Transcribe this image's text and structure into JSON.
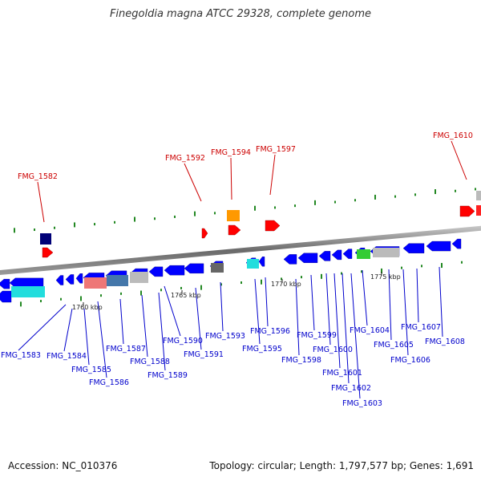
{
  "title": "Finegoldia magna ATCC 29328, complete genome",
  "colors": {
    "forward_gene": "#ff0000",
    "reverse_gene": "#0000ff",
    "forward_label": "#cc0000",
    "reverse_label": "#0000cc",
    "backbone": "#888888",
    "gc_tick": "#228822"
  },
  "tick_labels": [
    "1760 kbp",
    "1765 kbp",
    "1770 kbp",
    "1775 kbp"
  ],
  "forward_labels": [
    "FMG_1582",
    "FMG_1592",
    "FMG_1594",
    "FMG_1597",
    "FMG_1610"
  ],
  "reverse_labels": [
    "FMG_1583",
    "FMG_1584",
    "FMG_1585",
    "FMG_1586",
    "FMG_1587",
    "FMG_1588",
    "FMG_1589",
    "FMG_1590",
    "FMG_1591",
    "FMG_1593",
    "FMG_1595",
    "FMG_1596",
    "FMG_1598",
    "FMG_1599",
    "FMG_1600",
    "FMG_1601",
    "FMG_1602",
    "FMG_1603",
    "FMG_1604",
    "FMG_1605",
    "FMG_1606",
    "FMG_1607",
    "FMG_1608"
  ],
  "footer": {
    "accession": "Accession: NC_010376",
    "summary": "Topology: circular; Length: 1,797,577 bp; Genes: 1,691"
  }
}
